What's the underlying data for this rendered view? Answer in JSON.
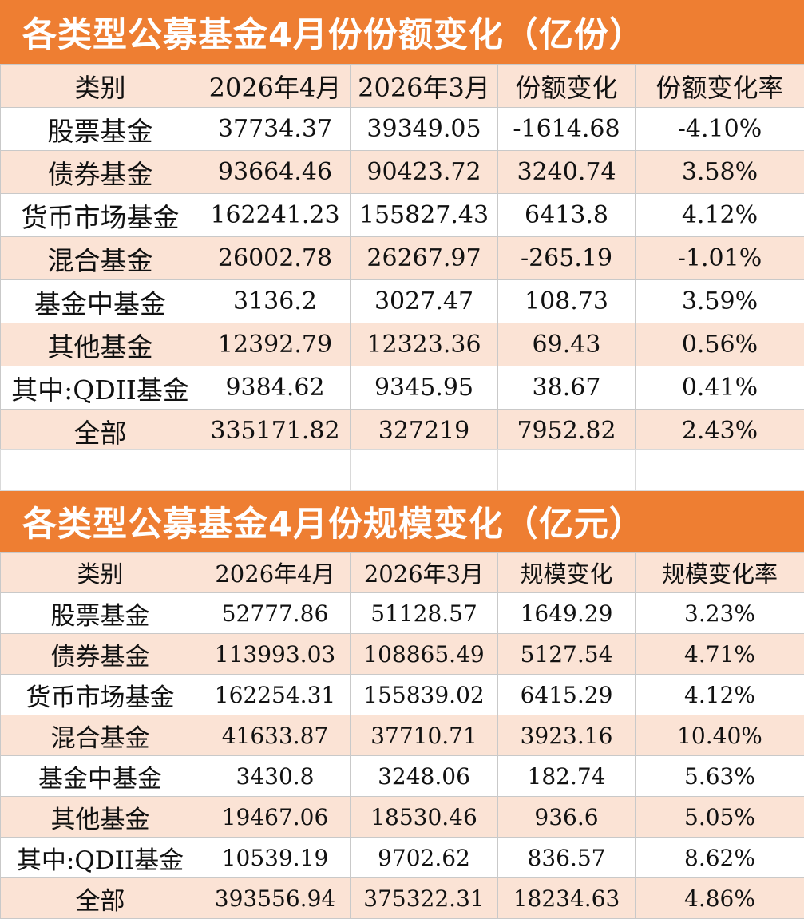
{
  "table1": {
    "title": "各类型公募基金4月份份额变化（亿份）",
    "headers": [
      "类别",
      "2026年4月",
      "2026年3月",
      "份额变化",
      "份额变化率"
    ],
    "rows": [
      [
        "股票基金",
        "37734.37",
        "39349.05",
        "-1614.68",
        "-4.10%"
      ],
      [
        "债券基金",
        "93664.46",
        "90423.72",
        "3240.74",
        "3.58%"
      ],
      [
        "货币市场基金",
        "162241.23",
        "155827.43",
        "6413.8",
        "4.12%"
      ],
      [
        "混合基金",
        "26002.78",
        "26267.97",
        "-265.19",
        "-1.01%"
      ],
      [
        "基金中基金",
        "3136.2",
        "3027.47",
        "108.73",
        "3.59%"
      ],
      [
        "其他基金",
        "12392.79",
        "12323.36",
        "69.43",
        "0.56%"
      ],
      [
        "其中:QDII基金",
        "9384.62",
        "9345.95",
        "38.67",
        "0.41%"
      ],
      [
        "全部",
        "335171.82",
        "327219",
        "7952.82",
        "2.43%"
      ]
    ]
  },
  "table2": {
    "title": "各类型公募基金4月份规模变化（亿元）",
    "headers": [
      "类别",
      "2026年4月",
      "2026年3月",
      "规模变化",
      "规模变化率"
    ],
    "rows": [
      [
        "股票基金",
        "52777.86",
        "51128.57",
        "1649.29",
        "3.23%"
      ],
      [
        "债券基金",
        "113993.03",
        "108865.49",
        "5127.54",
        "4.71%"
      ],
      [
        "货币市场基金",
        "162254.31",
        "155839.02",
        "6415.29",
        "4.12%"
      ],
      [
        "混合基金",
        "41633.87",
        "37710.71",
        "3923.16",
        "10.40%"
      ],
      [
        "基金中基金",
        "3430.8",
        "3248.06",
        "182.74",
        "5.63%"
      ],
      [
        "其他基金",
        "19467.06",
        "18530.46",
        "936.6",
        "5.05%"
      ],
      [
        "其中:QDII基金",
        "10539.19",
        "9702.62",
        "836.57",
        "8.62%"
      ],
      [
        "全部",
        "393556.94",
        "375322.31",
        "18234.63",
        "4.86%"
      ]
    ]
  },
  "colors": {
    "title_bg": "#ee7e32",
    "stripe": "#fbe3d5",
    "grid": "#c9c9c9"
  }
}
